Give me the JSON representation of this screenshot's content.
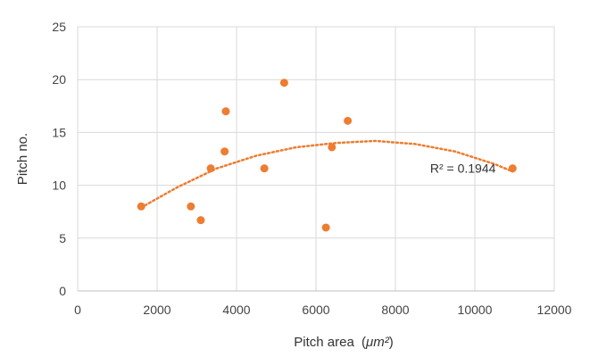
{
  "chart_data": {
    "type": "scatter",
    "title": "",
    "xlabel": "Pitch area",
    "xlabel_unit": "μm²",
    "ylabel": "Pitch no.",
    "xlim": [
      0,
      12000
    ],
    "ylim": [
      0,
      25
    ],
    "x_ticks": [
      "0",
      "2000",
      "4000",
      "6000",
      "8000",
      "10000",
      "12000"
    ],
    "y_ticks": [
      "0",
      "5",
      "10",
      "15",
      "20",
      "25"
    ],
    "grid": true,
    "legend": "none",
    "series": [
      {
        "color": "#ED7D31",
        "points": [
          {
            "x": 1600,
            "y": 8.0
          },
          {
            "x": 2850,
            "y": 8.0
          },
          {
            "x": 3100,
            "y": 6.7
          },
          {
            "x": 3350,
            "y": 11.6
          },
          {
            "x": 3700,
            "y": 13.2
          },
          {
            "x": 3730,
            "y": 17.0
          },
          {
            "x": 4700,
            "y": 11.6
          },
          {
            "x": 5200,
            "y": 19.7
          },
          {
            "x": 6250,
            "y": 6.0
          },
          {
            "x": 6400,
            "y": 13.6
          },
          {
            "x": 6800,
            "y": 16.1
          },
          {
            "x": 10950,
            "y": 11.6
          }
        ]
      }
    ],
    "trendline": {
      "type": "polynomial",
      "order": 2,
      "style": "dotted",
      "color": "#ED7D31",
      "x_range": [
        1600,
        10950
      ],
      "points": [
        {
          "x": 1600,
          "y": 7.9
        },
        {
          "x": 2500,
          "y": 9.8
        },
        {
          "x": 3500,
          "y": 11.6
        },
        {
          "x": 4500,
          "y": 12.8
        },
        {
          "x": 5500,
          "y": 13.6
        },
        {
          "x": 6500,
          "y": 14.0
        },
        {
          "x": 7500,
          "y": 14.2
        },
        {
          "x": 8500,
          "y": 13.9
        },
        {
          "x": 9500,
          "y": 13.2
        },
        {
          "x": 10500,
          "y": 12.0
        },
        {
          "x": 10950,
          "y": 11.3
        }
      ]
    },
    "annotations": [
      {
        "text": "R² = 0.1944",
        "x": 9700,
        "y": 11.2
      }
    ]
  }
}
